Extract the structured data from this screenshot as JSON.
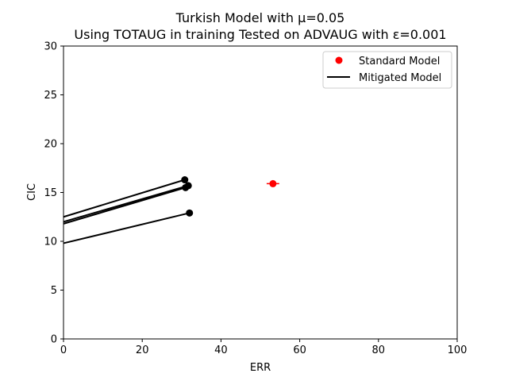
{
  "chart_data": {
    "type": "scatter",
    "title": "Turkish Model with μ=0.05",
    "subtitle": "Using TOTAUG in training Tested on ADVAUG with ε=0.001",
    "xlabel": "ERR",
    "ylabel": "CIC",
    "xlim": [
      0,
      100
    ],
    "ylim": [
      0,
      30
    ],
    "xticks": [
      "0",
      "20",
      "40",
      "60",
      "80",
      "100"
    ],
    "yticks": [
      "0",
      "5",
      "10",
      "15",
      "20",
      "25",
      "30"
    ],
    "grid": false,
    "legend": {
      "placement": "top-right",
      "entries": [
        "Standard Model",
        "Mitigated Model"
      ]
    },
    "standard_model": {
      "name": "Standard Model",
      "color": "#ff0000",
      "points": [
        {
          "x": 53.2,
          "y": 15.9,
          "xerr": 1.6,
          "yerr": 0.3
        }
      ]
    },
    "mitigated_model": {
      "name": "Mitigated Model",
      "color": "#000000",
      "lines": [
        {
          "x": [
            0,
            30.8
          ],
          "y": [
            12.5,
            16.3
          ]
        },
        {
          "x": [
            0,
            31.7
          ],
          "y": [
            12.0,
            15.7
          ]
        },
        {
          "x": [
            0,
            31.0
          ],
          "y": [
            11.8,
            15.5
          ]
        },
        {
          "x": [
            0,
            32.0
          ],
          "y": [
            9.8,
            12.9
          ]
        }
      ]
    }
  }
}
